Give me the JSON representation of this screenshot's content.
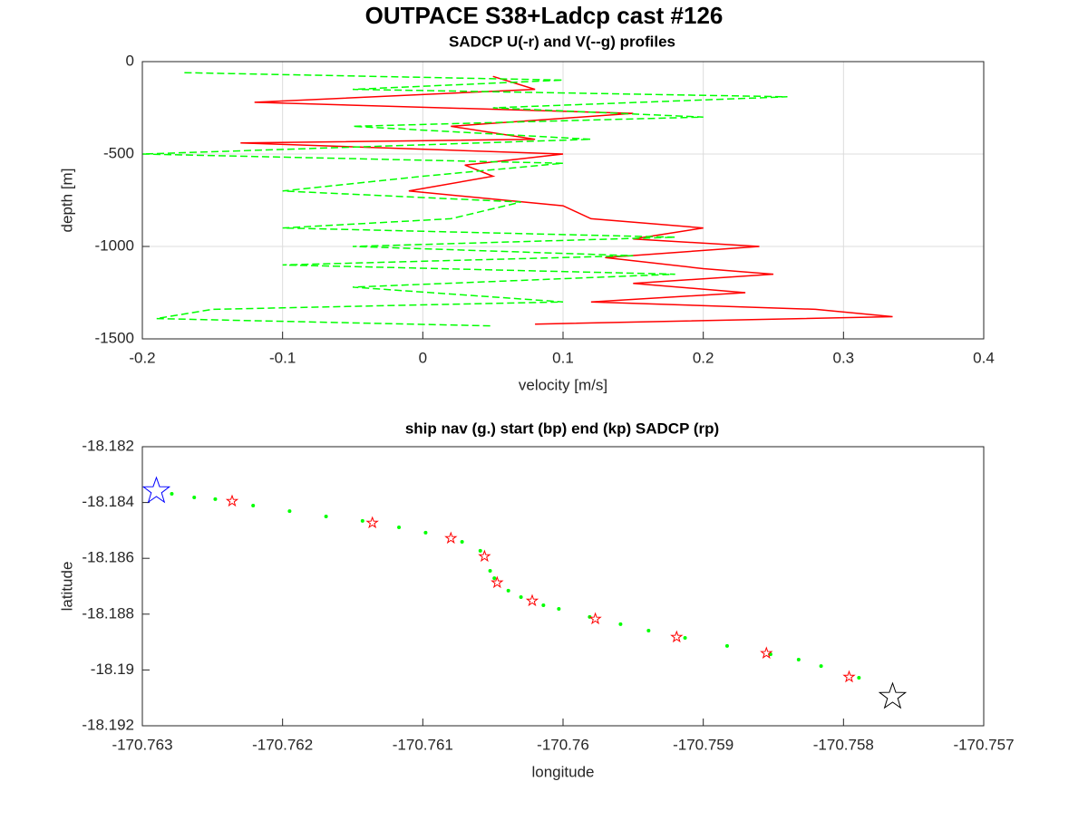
{
  "chart_data": [
    {
      "type": "line",
      "title": "OUTPACE S38+Ladcp cast #126",
      "subtitle": "SADCP U(-r) and V(--g) profiles",
      "xlabel": "velocity [m/s]",
      "ylabel": "depth [m]",
      "xlim": [
        -0.2,
        0.4
      ],
      "xticks": [
        -0.2,
        -0.1,
        0,
        0.1,
        0.2,
        0.3,
        0.4
      ],
      "ylim": [
        -1500,
        0
      ],
      "yticks": [
        -1500,
        -1000,
        -500,
        0
      ],
      "grid": true,
      "series": [
        {
          "color": "#ff0000",
          "linestyle": "solid",
          "x": [
            0.05,
            0.08,
            -0.12,
            0.15,
            0.02,
            0.08,
            -0.13,
            0.1,
            0.03,
            0.05,
            -0.01,
            0.1,
            0.12,
            0.2,
            0.15,
            0.24,
            0.13,
            0.2,
            0.25,
            0.15,
            0.23,
            0.12,
            0.28,
            0.335,
            0.08
          ],
          "values": [
            -80,
            -150,
            -220,
            -280,
            -350,
            -420,
            -440,
            -500,
            -560,
            -620,
            -700,
            -780,
            -850,
            -900,
            -960,
            -1000,
            -1060,
            -1120,
            -1150,
            -1200,
            -1250,
            -1300,
            -1340,
            -1380,
            -1420
          ]
        },
        {
          "color": "#00ff00",
          "linestyle": "dashed",
          "x": [
            -0.17,
            0.1,
            -0.05,
            0.26,
            0.05,
            0.2,
            -0.05,
            0.12,
            -0.2,
            0.1,
            0,
            -0.1,
            0.07,
            0.02,
            -0.1,
            0.18,
            -0.05,
            0.15,
            -0.1,
            0.18,
            -0.05,
            0.1,
            -0.15,
            -0.19,
            0.05
          ],
          "values": [
            -60,
            -100,
            -150,
            -190,
            -250,
            -300,
            -350,
            -420,
            -500,
            -550,
            -620,
            -700,
            -760,
            -850,
            -900,
            -950,
            -1000,
            -1050,
            -1100,
            -1150,
            -1220,
            -1300,
            -1340,
            -1390,
            -1430
          ]
        }
      ]
    },
    {
      "type": "scatter",
      "title": "ship nav (g.) start (bp) end (kp) SADCP (rp)",
      "xlabel": "longitude",
      "ylabel": "latitude",
      "xlim": [
        -170.763,
        -170.757
      ],
      "xticks": [
        -170.763,
        -170.762,
        -170.761,
        -170.76,
        -170.759,
        -170.758,
        -170.757
      ],
      "ylim": [
        -18.192,
        -18.182
      ],
      "yticks": [
        -18.192,
        -18.19,
        -18.188,
        -18.186,
        -18.184,
        -18.182
      ],
      "grid": false,
      "series": [
        {
          "color": "#00ff00",
          "marker": "dot",
          "x": [
            -170.76279,
            -170.76263,
            -170.76248,
            -170.76221,
            -170.76195,
            -170.76169,
            -170.76143,
            -170.76117,
            -170.76098,
            -170.76072,
            -170.76059,
            -170.76052,
            -170.76049,
            -170.76039,
            -170.7603,
            -170.76014,
            -170.76003,
            -170.75981,
            -170.75959,
            -170.75939,
            -170.75913,
            -170.75883,
            -170.75852,
            -170.75832,
            -170.75816,
            -170.75789
          ],
          "values": [
            -18.18369,
            -18.18382,
            -18.18388,
            -18.18411,
            -18.18431,
            -18.1845,
            -18.18466,
            -18.18489,
            -18.18508,
            -18.18541,
            -18.18573,
            -18.18645,
            -18.18671,
            -18.18716,
            -18.18739,
            -18.18768,
            -18.18781,
            -18.1881,
            -18.18836,
            -18.18859,
            -18.18885,
            -18.18914,
            -18.18944,
            -18.18963,
            -18.18986,
            -18.19028
          ]
        },
        {
          "color": "#ff0000",
          "marker": "star",
          "x": [
            -170.76236,
            -170.76136,
            -170.7608,
            -170.76056,
            -170.76047,
            -170.76022,
            -170.75977,
            -170.75919,
            -170.75855,
            -170.75796
          ],
          "values": [
            -18.18395,
            -18.18473,
            -18.18528,
            -18.18593,
            -18.18687,
            -18.18752,
            -18.18817,
            -18.18882,
            -18.1894,
            -18.19025
          ]
        },
        {
          "color": "#0000ff",
          "marker": "bigstar",
          "x": [
            -170.7629
          ],
          "values": [
            -18.18359
          ]
        },
        {
          "color": "#000000",
          "marker": "bigstar",
          "x": [
            -170.75765
          ],
          "values": [
            -18.19096
          ]
        }
      ]
    }
  ]
}
